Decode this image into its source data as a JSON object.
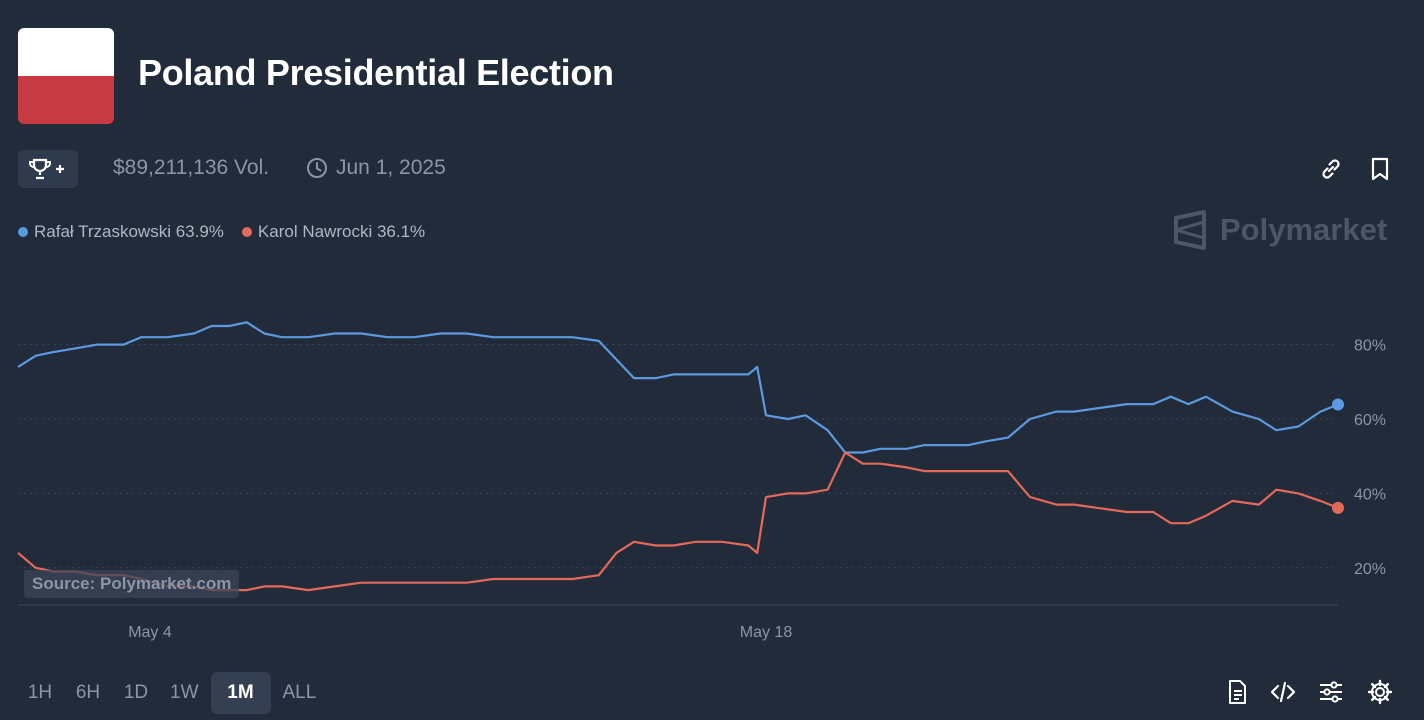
{
  "header": {
    "title": "Poland Presidential Election",
    "volume": "$89,211,136 Vol.",
    "end_date": "Jun 1, 2025",
    "flag_colors": [
      "#ffffff",
      "#c73a44"
    ]
  },
  "icons": {
    "trophy": "trophy-plus-icon",
    "clock": "clock-icon",
    "link": "link-icon",
    "bookmark": "bookmark-icon",
    "document": "document-icon",
    "embed": "code-icon",
    "filters": "sliders-icon",
    "settings": "gear-icon"
  },
  "legend": [
    {
      "label": "Rafał Trzaskowski 63.9%",
      "color": "#5b9ae0"
    },
    {
      "label": "Karol Nawrocki 36.1%",
      "color": "#e4695a"
    }
  ],
  "brand": "Polymarket",
  "source_label": "Source: Polymarket.com",
  "time_ranges": [
    "1H",
    "6H",
    "1D",
    "1W",
    "1M",
    "ALL"
  ],
  "active_range": "1M",
  "chart_data": {
    "type": "line",
    "x_ticks": [
      {
        "day": 4,
        "label": "May 4"
      },
      {
        "day": 18,
        "label": "May 18"
      }
    ],
    "y_ticks": [
      20,
      40,
      60,
      80
    ],
    "y_tick_labels": [
      "20%",
      "40%",
      "60%",
      "80%"
    ],
    "ylim": [
      10,
      92
    ],
    "xlim": [
      1,
      31
    ],
    "grid": true,
    "series": [
      {
        "name": "Rafał Trzaskowski",
        "color": "#5b9ae0",
        "points": [
          [
            1.0,
            74
          ],
          [
            1.4,
            77
          ],
          [
            1.8,
            78
          ],
          [
            2.3,
            79
          ],
          [
            2.8,
            80
          ],
          [
            3.4,
            80
          ],
          [
            3.8,
            82
          ],
          [
            4.4,
            82
          ],
          [
            5.0,
            83
          ],
          [
            5.4,
            85
          ],
          [
            5.8,
            85
          ],
          [
            6.2,
            86
          ],
          [
            6.6,
            83
          ],
          [
            7.0,
            82
          ],
          [
            7.6,
            82
          ],
          [
            8.2,
            83
          ],
          [
            8.8,
            83
          ],
          [
            9.4,
            82
          ],
          [
            10.0,
            82
          ],
          [
            10.6,
            83
          ],
          [
            11.2,
            83
          ],
          [
            11.8,
            82
          ],
          [
            12.4,
            82
          ],
          [
            13.0,
            82
          ],
          [
            13.6,
            82
          ],
          [
            14.2,
            81
          ],
          [
            14.6,
            76
          ],
          [
            15.0,
            71
          ],
          [
            15.5,
            71
          ],
          [
            15.9,
            72
          ],
          [
            16.4,
            72
          ],
          [
            17.0,
            72
          ],
          [
            17.6,
            72
          ],
          [
            17.8,
            74
          ],
          [
            18.0,
            61
          ],
          [
            18.5,
            60
          ],
          [
            18.9,
            61
          ],
          [
            19.4,
            57
          ],
          [
            19.8,
            51
          ],
          [
            20.2,
            51
          ],
          [
            20.6,
            52
          ],
          [
            21.2,
            52
          ],
          [
            21.6,
            53
          ],
          [
            22.0,
            53
          ],
          [
            22.6,
            53
          ],
          [
            23.0,
            54
          ],
          [
            23.5,
            55
          ],
          [
            24.0,
            60
          ],
          [
            24.6,
            62
          ],
          [
            25.0,
            62
          ],
          [
            25.6,
            63
          ],
          [
            26.2,
            64
          ],
          [
            26.8,
            64
          ],
          [
            27.2,
            66
          ],
          [
            27.6,
            64
          ],
          [
            28.0,
            66
          ],
          [
            28.6,
            62
          ],
          [
            29.2,
            60
          ],
          [
            29.6,
            57
          ],
          [
            30.1,
            58
          ],
          [
            30.6,
            62
          ],
          [
            31.0,
            63.9
          ]
        ]
      },
      {
        "name": "Karol Nawrocki",
        "color": "#e4695a",
        "points": [
          [
            1.0,
            24
          ],
          [
            1.4,
            20
          ],
          [
            1.8,
            19
          ],
          [
            2.3,
            19
          ],
          [
            2.8,
            18
          ],
          [
            3.4,
            18
          ],
          [
            3.8,
            17
          ],
          [
            4.4,
            15
          ],
          [
            5.0,
            15
          ],
          [
            5.4,
            14
          ],
          [
            5.8,
            14
          ],
          [
            6.2,
            14
          ],
          [
            6.6,
            15
          ],
          [
            7.0,
            15
          ],
          [
            7.6,
            14
          ],
          [
            8.2,
            15
          ],
          [
            8.8,
            16
          ],
          [
            9.4,
            16
          ],
          [
            10.0,
            16
          ],
          [
            10.6,
            16
          ],
          [
            11.2,
            16
          ],
          [
            11.8,
            17
          ],
          [
            12.4,
            17
          ],
          [
            13.0,
            17
          ],
          [
            13.6,
            17
          ],
          [
            14.2,
            18
          ],
          [
            14.6,
            24
          ],
          [
            15.0,
            27
          ],
          [
            15.5,
            26
          ],
          [
            15.9,
            26
          ],
          [
            16.4,
            27
          ],
          [
            17.0,
            27
          ],
          [
            17.6,
            26
          ],
          [
            17.8,
            24
          ],
          [
            18.0,
            39
          ],
          [
            18.5,
            40
          ],
          [
            18.9,
            40
          ],
          [
            19.4,
            41
          ],
          [
            19.8,
            51
          ],
          [
            20.2,
            48
          ],
          [
            20.6,
            48
          ],
          [
            21.2,
            47
          ],
          [
            21.6,
            46
          ],
          [
            22.0,
            46
          ],
          [
            22.6,
            46
          ],
          [
            23.0,
            46
          ],
          [
            23.5,
            46
          ],
          [
            24.0,
            39
          ],
          [
            24.6,
            37
          ],
          [
            25.0,
            37
          ],
          [
            25.6,
            36
          ],
          [
            26.2,
            35
          ],
          [
            26.8,
            35
          ],
          [
            27.2,
            32
          ],
          [
            27.6,
            32
          ],
          [
            28.0,
            34
          ],
          [
            28.6,
            38
          ],
          [
            29.2,
            37
          ],
          [
            29.6,
            41
          ],
          [
            30.1,
            40
          ],
          [
            30.6,
            38
          ],
          [
            31.0,
            36.1
          ]
        ]
      }
    ]
  }
}
